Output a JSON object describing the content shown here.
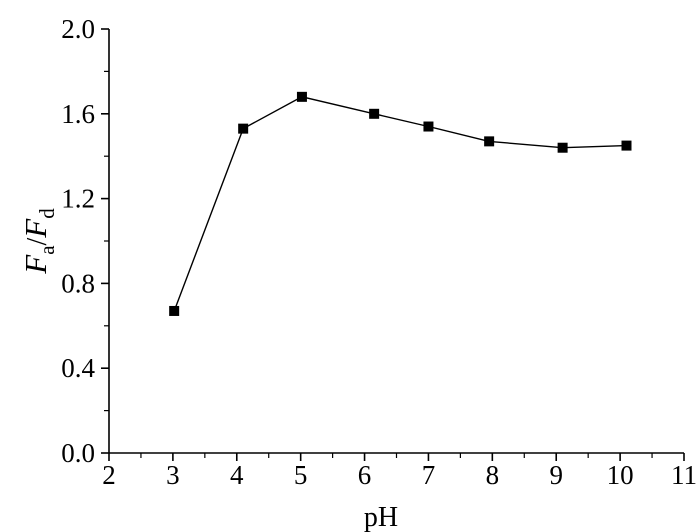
{
  "chart_data": {
    "type": "line",
    "title": "",
    "xlabel": "pH",
    "ylabel": {
      "italic_1": "F",
      "sub_1": "a",
      "slash": "/",
      "italic_2": "F",
      "sub_2": "d"
    },
    "xlim": [
      2,
      11
    ],
    "ylim": [
      0.0,
      2.0
    ],
    "xticks": [
      2,
      3,
      4,
      5,
      6,
      7,
      8,
      9,
      10,
      11
    ],
    "xtick_labels": [
      "2",
      "3",
      "4",
      "5",
      "6",
      "7",
      "8",
      "9",
      "10",
      "11"
    ],
    "yticks": [
      0.0,
      0.4,
      0.8,
      1.2,
      1.6,
      2.0
    ],
    "ytick_labels": [
      "0.0",
      "0.4",
      "0.8",
      "1.2",
      "1.6",
      "2.0"
    ],
    "grid": false,
    "marker": "square",
    "series": [
      {
        "x": [
          3.02,
          4.1,
          5.02,
          6.15,
          7.0,
          7.95,
          9.1,
          10.1
        ],
        "y": [
          0.67,
          1.53,
          1.68,
          1.6,
          1.54,
          1.47,
          1.44,
          1.45
        ]
      }
    ],
    "colors": {
      "line": "#000000",
      "marker": "#000000",
      "axis": "#000000"
    }
  }
}
